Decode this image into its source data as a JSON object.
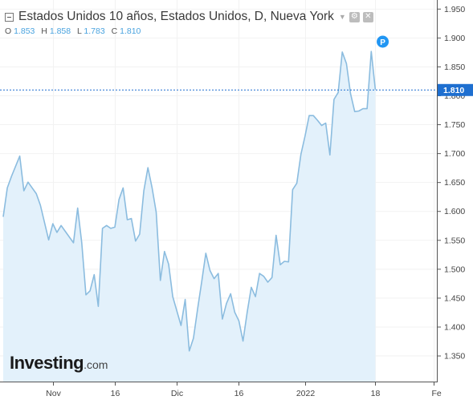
{
  "header": {
    "title": "Estados Unidos 10 años, Estados Unidos, D, Nueva York",
    "ohlc": [
      {
        "key": "O",
        "value": "1.853"
      },
      {
        "key": "H",
        "value": "1.858"
      },
      {
        "key": "L",
        "value": "1.783"
      },
      {
        "key": "C",
        "value": "1.810"
      }
    ]
  },
  "logo": {
    "brand": "Investing",
    "domain": ".com"
  },
  "colors": {
    "line": "#8bbcdf",
    "fill": "#e3f1fb",
    "accent": "#1e6fd0",
    "marker": "#2196f3"
  },
  "marker": {
    "label": "P",
    "date": "2022-01-19"
  },
  "chart_data": {
    "type": "area",
    "x_axis": {
      "range": [
        "2021-10-20",
        "2022-02-01"
      ],
      "ticks": [
        {
          "date": "2021-11-01",
          "label": "Nov"
        },
        {
          "date": "2021-11-16",
          "label": "16"
        },
        {
          "date": "2021-12-01",
          "label": "Dic"
        },
        {
          "date": "2021-12-16",
          "label": "16"
        },
        {
          "date": "2022-01-01",
          "label": "2022"
        },
        {
          "date": "2022-01-18",
          "label": "18"
        },
        {
          "date": "2022-02-01",
          "label": "Fe"
        }
      ]
    },
    "y_axis": {
      "range": [
        1.305,
        1.965
      ],
      "ticks": [
        "1.350",
        "1.400",
        "1.450",
        "1.500",
        "1.550",
        "1.600",
        "1.650",
        "1.700",
        "1.750",
        "1.800",
        "1.850",
        "1.900",
        "1.950"
      ]
    },
    "last_value": {
      "value": 1.81,
      "label": "1.810"
    },
    "series": [
      {
        "values": [
          [
            "2021-10-20",
            1.59
          ],
          [
            "2021-10-21",
            1.64
          ],
          [
            "2021-10-22",
            1.66
          ],
          [
            "2021-10-24",
            1.695
          ],
          [
            "2021-10-25",
            1.635
          ],
          [
            "2021-10-26",
            1.65
          ],
          [
            "2021-10-28",
            1.63
          ],
          [
            "2021-10-29",
            1.61
          ],
          [
            "2021-10-31",
            1.55
          ],
          [
            "2021-11-01",
            1.578
          ],
          [
            "2021-11-02",
            1.563
          ],
          [
            "2021-11-03",
            1.575
          ],
          [
            "2021-11-04",
            1.565
          ],
          [
            "2021-11-06",
            1.545
          ],
          [
            "2021-11-07",
            1.605
          ],
          [
            "2021-11-08",
            1.545
          ],
          [
            "2021-11-09",
            1.455
          ],
          [
            "2021-11-10",
            1.462
          ],
          [
            "2021-11-11",
            1.49
          ],
          [
            "2021-11-12",
            1.435
          ],
          [
            "2021-11-13",
            1.57
          ],
          [
            "2021-11-14",
            1.575
          ],
          [
            "2021-11-15",
            1.57
          ],
          [
            "2021-11-16",
            1.572
          ],
          [
            "2021-11-17",
            1.62
          ],
          [
            "2021-11-18",
            1.64
          ],
          [
            "2021-11-19",
            1.585
          ],
          [
            "2021-11-20",
            1.587
          ],
          [
            "2021-11-21",
            1.548
          ],
          [
            "2021-11-22",
            1.56
          ],
          [
            "2021-11-23",
            1.635
          ],
          [
            "2021-11-24",
            1.675
          ],
          [
            "2021-11-25",
            1.64
          ],
          [
            "2021-11-26",
            1.598
          ],
          [
            "2021-11-27",
            1.48
          ],
          [
            "2021-11-28",
            1.53
          ],
          [
            "2021-11-29",
            1.508
          ],
          [
            "2021-11-30",
            1.452
          ],
          [
            "2021-12-02",
            1.402
          ],
          [
            "2021-12-03",
            1.447
          ],
          [
            "2021-12-04",
            1.358
          ],
          [
            "2021-12-05",
            1.38
          ],
          [
            "2021-12-06",
            1.43
          ],
          [
            "2021-12-07",
            1.478
          ],
          [
            "2021-12-08",
            1.527
          ],
          [
            "2021-12-09",
            1.497
          ],
          [
            "2021-12-10",
            1.483
          ],
          [
            "2021-12-11",
            1.492
          ],
          [
            "2021-12-12",
            1.413
          ],
          [
            "2021-12-13",
            1.44
          ],
          [
            "2021-12-14",
            1.457
          ],
          [
            "2021-12-15",
            1.425
          ],
          [
            "2021-12-16",
            1.41
          ],
          [
            "2021-12-17",
            1.375
          ],
          [
            "2021-12-18",
            1.425
          ],
          [
            "2021-12-19",
            1.468
          ],
          [
            "2021-12-20",
            1.452
          ],
          [
            "2021-12-21",
            1.492
          ],
          [
            "2021-12-22",
            1.487
          ],
          [
            "2021-12-23",
            1.477
          ],
          [
            "2021-12-24",
            1.485
          ],
          [
            "2021-12-25",
            1.558
          ],
          [
            "2021-12-26",
            1.507
          ],
          [
            "2021-12-27",
            1.513
          ],
          [
            "2021-12-28",
            1.512
          ],
          [
            "2021-12-29",
            1.637
          ],
          [
            "2021-12-30",
            1.648
          ],
          [
            "2021-12-31",
            1.698
          ],
          [
            "2022-01-01",
            1.73
          ],
          [
            "2022-01-02",
            1.765
          ],
          [
            "2022-01-03",
            1.765
          ],
          [
            "2022-01-04",
            1.757
          ],
          [
            "2022-01-05",
            1.748
          ],
          [
            "2022-01-06",
            1.752
          ],
          [
            "2022-01-07",
            1.697
          ],
          [
            "2022-01-08",
            1.793
          ],
          [
            "2022-01-09",
            1.805
          ],
          [
            "2022-01-10",
            1.875
          ],
          [
            "2022-01-11",
            1.855
          ],
          [
            "2022-01-12",
            1.803
          ],
          [
            "2022-01-13",
            1.772
          ],
          [
            "2022-01-14",
            1.773
          ],
          [
            "2022-01-15",
            1.777
          ],
          [
            "2022-01-16",
            1.777
          ],
          [
            "2022-01-17",
            1.876
          ],
          [
            "2022-01-18",
            1.81
          ]
        ]
      }
    ]
  }
}
